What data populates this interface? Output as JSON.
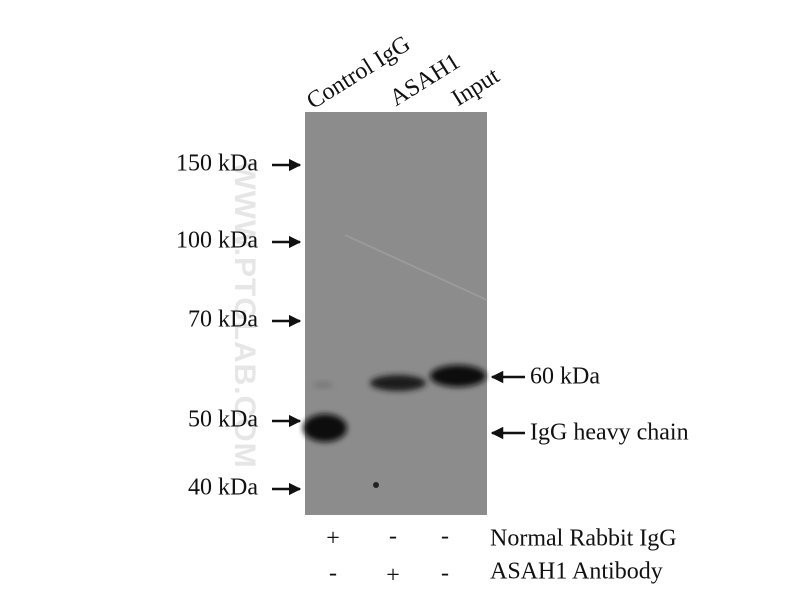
{
  "lanes": [
    "Control IgG",
    "ASAH1",
    "Input"
  ],
  "markers": [
    "150 kDa",
    "100 kDa",
    "70 kDa",
    "50 kDa",
    "40 kDa"
  ],
  "band_labels": [
    "60 kDa",
    "IgG heavy chain"
  ],
  "conditions": [
    {
      "label": "Normal Rabbit IgG",
      "signs": [
        "+",
        "-",
        "-"
      ]
    },
    {
      "label": "ASAH1 Antibody",
      "signs": [
        "-",
        "+",
        "-"
      ]
    }
  ],
  "watermark": "WWW.PTGLAB.COM"
}
